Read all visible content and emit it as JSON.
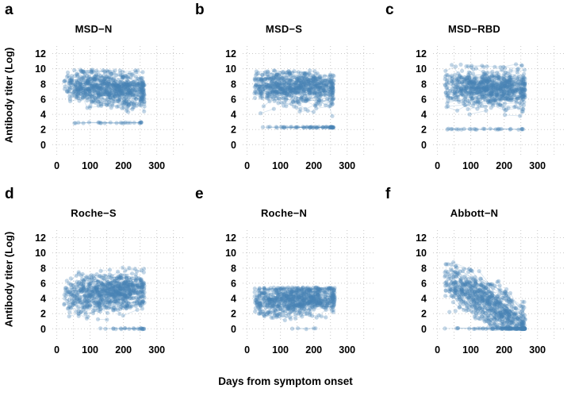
{
  "figure": {
    "background": "#ffffff",
    "x_axis_label": "Days from symptom onset",
    "y_axis_label": "Antibody titer (Log)",
    "point_color": "#4682b4",
    "grid_color": "#c9c9c9",
    "text_color": "#000000"
  },
  "chart_data": {
    "type": "scatter",
    "title": "",
    "description": "Six-panel longitudinal scatter plots (repeated antibody measurements per subject connected by thin lines) of antibody titer (Log) versus days from symptom onset for six serology assays.",
    "legend": "none",
    "grid": "dotted",
    "x": {
      "label": "Days from symptom onset",
      "ticks": [
        0,
        100,
        200,
        300
      ],
      "range": [
        0,
        300
      ],
      "domain": [
        -18,
        372
      ],
      "minor_grid_step": 50,
      "data_span": [
        22,
        265
      ]
    },
    "y": {
      "label": "Antibody titer (Log)",
      "ticks": [
        0,
        2,
        4,
        6,
        8,
        10,
        12
      ],
      "range": [
        0,
        12
      ],
      "domain": [
        -0.8,
        13.2
      ]
    },
    "style": {
      "point_radius": 2.6,
      "point_opacity": 0.32,
      "line_opacity": 0.2,
      "line_width": 0.9,
      "grid_dash": "1,3"
    },
    "panels": [
      {
        "letter": "a",
        "title": "MSD−N",
        "summary": "Dense cloud of titers ~5–10 (center ~7.3) over days 25–265 with slight decline; sparse points down to an assay floor near 2.9.",
        "cloud": {
          "seed": 11,
          "subjects": 300,
          "max_visits": 4,
          "x_min": 22,
          "x_max": 263,
          "visit_gap": 30,
          "intercept": 7.9,
          "slope": -0.004,
          "sd": 1.15,
          "ceil": 9.9,
          "floor": 2.9,
          "floor_frac": 0.02,
          "floor_stick": true,
          "rebound": 0
        }
      },
      {
        "letter": "b",
        "title": "MSD−S",
        "summary": "Dense flat cloud of titers ~6–10 (center ~7.5); horizontal row of non-responders at titer ~2.3 spanning days 20–230.",
        "cloud": {
          "seed": 22,
          "subjects": 300,
          "max_visits": 4,
          "x_min": 22,
          "x_max": 260,
          "visit_gap": 30,
          "intercept": 7.6,
          "slope": -0.001,
          "sd": 1.0,
          "ceil": 9.8,
          "floor": 2.3,
          "floor_frac": 0.05,
          "floor_stick": true,
          "rebound": 0
        }
      },
      {
        "letter": "c",
        "title": "MSD−RBD",
        "summary": "Dense cloud of titers ~5–10 (center ~7.4, max ~10.6); occasional non-responders at ~2.1 between days 50–200.",
        "cloud": {
          "seed": 33,
          "subjects": 300,
          "max_visits": 4,
          "x_min": 22,
          "x_max": 263,
          "visit_gap": 30,
          "intercept": 7.6,
          "slope": -0.0015,
          "sd": 1.1,
          "ceil": 10.6,
          "floor": 2.05,
          "floor_frac": 0.035,
          "floor_stick": true,
          "rebound": 0
        }
      },
      {
        "letter": "d",
        "title": "Roche−S",
        "summary": "Cloud of titers ~2–7 (center ~4.7) rising mildly with time; full range 0–8.",
        "cloud": {
          "seed": 44,
          "subjects": 300,
          "max_visits": 4,
          "x_min": 22,
          "x_max": 263,
          "visit_gap": 30,
          "intercept": 4.0,
          "slope": 0.004,
          "sd": 1.25,
          "ceil": 8.1,
          "floor": 0.02,
          "floor_frac": 0.01,
          "floor_stick": false,
          "rebound": 1.3
        }
      },
      {
        "letter": "e",
        "title": "Roche−N",
        "summary": "Flat cloud of titers ~2–5.5 (center ~3.9) with a hard upper plateau near 5.5; scattered points down to 0.",
        "cloud": {
          "seed": 55,
          "subjects": 300,
          "max_visits": 4,
          "x_min": 22,
          "x_max": 263,
          "visit_gap": 30,
          "intercept": 3.6,
          "slope": 0.0012,
          "sd": 1.0,
          "ceil": 5.45,
          "floor": 0.02,
          "floor_frac": 0.01,
          "floor_stick": false,
          "rebound": 1.0
        }
      },
      {
        "letter": "f",
        "title": "Abbott−N",
        "summary": "Clear decline: titers ~2–8.5 at day ~40 falling steadily to 0 by day ~200; dense row of values at the 0 floor from days 30–260 with long downward trajectories.",
        "cloud": {
          "seed": 66,
          "subjects": 300,
          "max_visits": 4,
          "x_min": 22,
          "x_max": 263,
          "visit_gap": 32,
          "intercept": 7.4,
          "slope": -0.028,
          "sd": 1.4,
          "ceil": 8.8,
          "floor": 0.03,
          "floor_frac": 0.03,
          "floor_stick": true,
          "rebound": 0
        }
      }
    ]
  }
}
